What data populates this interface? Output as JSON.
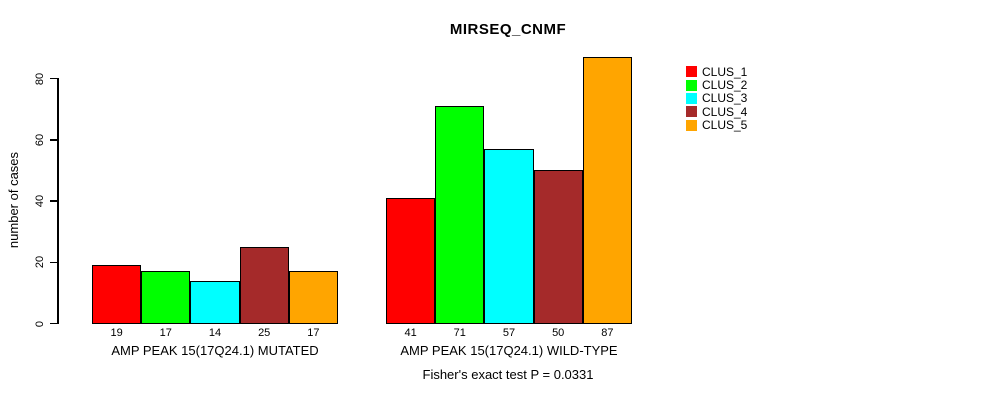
{
  "title": "MIRSEQ_CNMF",
  "y_axis": {
    "label": "number of cases",
    "tick_labels": [
      "0",
      "20",
      "40",
      "60",
      "80"
    ]
  },
  "footer": "Fisher's exact test P = 0.0331",
  "chart_data": {
    "type": "bar",
    "title": "MIRSEQ_CNMF",
    "xlabel": "",
    "ylabel": "number of cases",
    "ylim": [
      0,
      90
    ],
    "yticks": [
      0,
      20,
      40,
      60,
      80
    ],
    "grid": false,
    "legend_position": "right-outside-top",
    "bar_value_labels": true,
    "categories": [
      "AMP PEAK 15(17Q24.1) MUTATED",
      "AMP PEAK 15(17Q24.1) WILD-TYPE"
    ],
    "series": [
      {
        "name": "CLUS_1",
        "color": "#ff0000",
        "values": [
          19,
          41
        ]
      },
      {
        "name": "CLUS_2",
        "color": "#00ff00",
        "values": [
          17,
          71
        ]
      },
      {
        "name": "CLUS_3",
        "color": "#00ffff",
        "values": [
          14,
          57
        ]
      },
      {
        "name": "CLUS_4",
        "color": "#a52a2a",
        "values": [
          25,
          50
        ]
      },
      {
        "name": "CLUS_5",
        "color": "#ffa500",
        "values": [
          17,
          87
        ]
      }
    ],
    "annotation": "Fisher's exact test P = 0.0331"
  }
}
